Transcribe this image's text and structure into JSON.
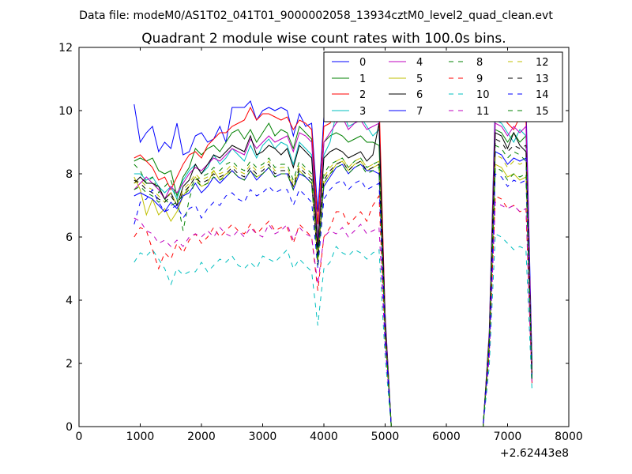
{
  "header": {
    "data_file": "Data file: modeM0/AS1T02_041T01_9000002058_13934cztM0_level2_quad_clean.evt"
  },
  "chart_data": {
    "type": "line",
    "title": "Quadrant 2 module wise count rates with 100.0s bins.",
    "xlabel": "",
    "ylabel": "",
    "xlim": [
      0,
      8000
    ],
    "ylim": [
      0,
      12
    ],
    "x_ticks": [
      0,
      1000,
      2000,
      3000,
      4000,
      5000,
      6000,
      7000,
      8000
    ],
    "x_tick_labels": [
      "0",
      "1000",
      "2000",
      "3000",
      "4000",
      "5000",
      "6000",
      "7000",
      "8000"
    ],
    "y_ticks": [
      0,
      2,
      4,
      6,
      8,
      10,
      12
    ],
    "y_tick_labels": [
      "0",
      "2",
      "4",
      "6",
      "8",
      "10",
      "12"
    ],
    "x_offset_label": "+2.62443e8",
    "legend_position": "top-right",
    "grid": false,
    "x": [
      900,
      1000,
      1100,
      1200,
      1300,
      1400,
      1500,
      1600,
      1700,
      1800,
      1900,
      2000,
      2100,
      2200,
      2300,
      2400,
      2500,
      2600,
      2700,
      2800,
      2900,
      3000,
      3100,
      3200,
      3300,
      3400,
      3500,
      3600,
      3700,
      3800,
      3900,
      4000,
      4100,
      4200,
      4300,
      4400,
      4500,
      4600,
      4700,
      4800,
      4900,
      5000,
      5100,
      6600,
      6700,
      6800,
      6900,
      7000,
      7100,
      7200,
      7300,
      7400
    ],
    "series": [
      {
        "name": "0",
        "color": "#0000ff",
        "dash": "solid",
        "values": [
          10.2,
          9.0,
          9.3,
          9.5,
          8.7,
          9.0,
          8.8,
          9.6,
          8.6,
          8.7,
          9.2,
          9.3,
          9.0,
          9.1,
          9.5,
          9.0,
          10.1,
          10.1,
          10.1,
          10.3,
          9.7,
          10.0,
          10.1,
          10.0,
          10.1,
          10.0,
          9.2,
          9.9,
          9.5,
          9.6,
          6.8,
          9.8,
          9.8,
          10.0,
          10.3,
          9.7,
          10.0,
          10.1,
          9.8,
          9.9,
          9.7,
          3.6,
          0.0,
          0.0,
          3.0,
          10.4,
          10.3,
          10.2,
          9.8,
          10.5,
          10.3,
          2.0
        ]
      },
      {
        "name": "1",
        "color": "#008000",
        "dash": "solid",
        "values": [
          8.4,
          8.5,
          8.4,
          8.5,
          8.1,
          8.0,
          8.1,
          7.3,
          7.9,
          8.2,
          8.8,
          8.6,
          8.8,
          8.9,
          8.7,
          9.0,
          9.3,
          9.4,
          9.1,
          9.4,
          9.0,
          9.3,
          9.6,
          9.2,
          9.4,
          9.3,
          8.8,
          9.5,
          9.3,
          9.1,
          6.0,
          9.0,
          9.2,
          9.3,
          9.2,
          9.0,
          9.1,
          9.2,
          9.0,
          9.0,
          8.9,
          3.4,
          0.0,
          0.0,
          2.8,
          9.4,
          9.3,
          9.0,
          9.3,
          9.0,
          9.2,
          1.8
        ]
      },
      {
        "name": "2",
        "color": "#ff0000",
        "dash": "solid",
        "values": [
          8.5,
          8.6,
          8.4,
          8.2,
          7.8,
          7.9,
          7.5,
          7.9,
          8.3,
          8.6,
          8.7,
          8.5,
          8.9,
          9.1,
          9.3,
          9.3,
          9.5,
          9.6,
          9.7,
          10.1,
          9.7,
          9.9,
          9.9,
          9.8,
          9.7,
          9.8,
          9.4,
          9.7,
          9.6,
          9.4,
          6.4,
          9.5,
          9.6,
          10.0,
          10.2,
          9.8,
          10.0,
          10.3,
          9.7,
          10.1,
          10.4,
          3.5,
          0.0,
          0.0,
          2.9,
          10.0,
          9.9,
          9.6,
          9.4,
          9.8,
          9.7,
          1.7
        ]
      },
      {
        "name": "3",
        "color": "#00bfbf",
        "dash": "solid",
        "values": [
          8.0,
          8.0,
          7.8,
          7.9,
          7.6,
          7.4,
          7.6,
          7.2,
          7.8,
          8.1,
          8.3,
          8.0,
          8.2,
          8.6,
          8.3,
          8.5,
          8.8,
          8.6,
          8.4,
          8.9,
          8.5,
          8.9,
          9.1,
          8.8,
          9.0,
          8.9,
          8.3,
          9.0,
          8.8,
          8.6,
          5.9,
          8.6,
          9.0,
          9.9,
          10.0,
          9.5,
          9.6,
          9.8,
          9.5,
          9.2,
          9.4,
          3.3,
          0.0,
          0.0,
          2.7,
          9.7,
          9.6,
          9.3,
          9.0,
          9.4,
          9.2,
          1.6
        ]
      },
      {
        "name": "4",
        "color": "#bf00bf",
        "dash": "solid",
        "values": [
          7.5,
          7.7,
          7.9,
          7.7,
          7.5,
          7.2,
          7.6,
          7.4,
          7.7,
          8.0,
          8.2,
          8.1,
          8.3,
          8.5,
          8.4,
          8.6,
          8.8,
          8.7,
          8.6,
          9.1,
          8.8,
          9.0,
          9.2,
          9.0,
          9.1,
          9.2,
          8.7,
          9.3,
          9.2,
          9.0,
          5.8,
          9.0,
          9.3,
          9.6,
          9.8,
          9.4,
          9.6,
          9.7,
          9.4,
          9.5,
          9.6,
          3.4,
          0.0,
          0.0,
          2.8,
          9.6,
          9.5,
          9.2,
          9.5,
          9.3,
          9.5,
          1.7
        ]
      },
      {
        "name": "5",
        "color": "#bfbf00",
        "dash": "solid",
        "values": [
          7.9,
          7.5,
          6.7,
          7.2,
          6.7,
          6.9,
          6.5,
          6.8,
          7.3,
          7.6,
          7.9,
          7.6,
          7.7,
          8.1,
          7.8,
          8.0,
          8.1,
          7.9,
          7.8,
          8.1,
          7.9,
          8.0,
          8.2,
          7.9,
          8.0,
          8.0,
          7.6,
          8.1,
          7.9,
          7.7,
          5.2,
          7.7,
          8.0,
          8.3,
          8.4,
          8.1,
          8.3,
          8.4,
          8.1,
          8.2,
          8.3,
          3.0,
          0.0,
          0.0,
          2.5,
          8.3,
          8.2,
          7.9,
          8.0,
          7.8,
          7.9,
          1.5
        ]
      },
      {
        "name": "6",
        "color": "#000000",
        "dash": "solid",
        "values": [
          7.7,
          7.9,
          7.7,
          7.7,
          7.6,
          7.2,
          7.4,
          7.0,
          7.6,
          7.8,
          8.3,
          8.0,
          8.3,
          8.6,
          8.5,
          8.7,
          8.9,
          8.8,
          8.7,
          9.2,
          8.6,
          8.7,
          8.9,
          8.8,
          8.6,
          8.8,
          8.2,
          8.9,
          8.7,
          8.5,
          5.6,
          8.5,
          8.7,
          8.8,
          8.7,
          8.5,
          8.6,
          8.7,
          8.4,
          8.6,
          9.6,
          3.3,
          0.0,
          0.0,
          2.8,
          9.3,
          9.2,
          8.8,
          9.3,
          8.9,
          8.7,
          1.6
        ]
      },
      {
        "name": "7",
        "color": "#0000ff",
        "dash": "solid",
        "values": [
          7.3,
          7.4,
          7.3,
          7.2,
          7.0,
          6.8,
          7.1,
          6.9,
          7.3,
          7.4,
          7.7,
          7.4,
          7.6,
          7.9,
          7.7,
          7.9,
          8.1,
          7.9,
          7.8,
          8.1,
          7.8,
          8.0,
          8.2,
          7.9,
          8.0,
          8.0,
          7.5,
          8.0,
          7.9,
          7.7,
          5.4,
          7.6,
          7.9,
          8.2,
          8.3,
          8.0,
          8.2,
          8.3,
          8.1,
          8.1,
          8.0,
          3.1,
          0.0,
          0.0,
          2.6,
          8.7,
          8.6,
          8.3,
          8.5,
          8.4,
          8.5,
          1.5
        ]
      },
      {
        "name": "8",
        "color": "#008000",
        "dash": "dashed",
        "values": [
          8.3,
          8.1,
          7.7,
          7.9,
          7.4,
          7.6,
          7.8,
          7.2,
          6.2,
          7.2,
          7.8,
          7.9,
          8.0,
          8.2,
          8.1,
          8.3,
          8.4,
          8.2,
          8.1,
          8.4,
          8.2,
          8.3,
          8.5,
          8.2,
          8.3,
          8.3,
          7.8,
          8.4,
          8.2,
          8.0,
          5.3,
          8.0,
          8.3,
          8.4,
          8.5,
          8.2,
          8.4,
          8.5,
          8.2,
          8.3,
          8.4,
          3.1,
          0.0,
          0.0,
          2.7,
          8.9,
          8.8,
          8.5,
          8.7,
          8.6,
          8.4,
          1.5
        ]
      },
      {
        "name": "9",
        "color": "#ff0000",
        "dash": "dashed",
        "values": [
          6.0,
          6.3,
          6.2,
          5.6,
          5.0,
          5.5,
          5.3,
          5.8,
          5.5,
          5.9,
          6.1,
          5.8,
          6.0,
          6.3,
          6.0,
          6.2,
          6.4,
          6.2,
          6.1,
          6.4,
          6.1,
          6.3,
          6.5,
          6.2,
          6.3,
          6.3,
          5.8,
          6.4,
          6.2,
          6.0,
          4.3,
          6.0,
          6.3,
          6.8,
          6.8,
          6.4,
          6.6,
          6.8,
          6.5,
          7.0,
          7.3,
          2.7,
          0.0,
          0.0,
          2.3,
          7.3,
          7.2,
          6.9,
          7.0,
          6.8,
          6.9,
          1.3
        ]
      },
      {
        "name": "10",
        "color": "#00bfbf",
        "dash": "dashed",
        "values": [
          5.2,
          5.5,
          5.4,
          5.6,
          5.3,
          5.0,
          4.5,
          5.0,
          4.8,
          4.9,
          4.9,
          5.2,
          4.9,
          5.1,
          5.3,
          5.2,
          5.4,
          5.1,
          5.0,
          5.2,
          5.0,
          5.4,
          5.3,
          5.2,
          5.4,
          5.6,
          5.0,
          5.3,
          5.1,
          4.9,
          3.2,
          5.0,
          5.2,
          5.7,
          5.5,
          5.4,
          5.6,
          5.5,
          5.3,
          5.5,
          5.6,
          2.2,
          0.0,
          0.0,
          1.9,
          6.1,
          6.0,
          5.8,
          5.6,
          5.7,
          5.6,
          1.1
        ]
      },
      {
        "name": "11",
        "color": "#bf00bf",
        "dash": "dashed",
        "values": [
          6.6,
          6.5,
          6.2,
          6.1,
          5.8,
          5.9,
          5.7,
          5.9,
          5.7,
          6.0,
          6.1,
          6.0,
          6.2,
          6.0,
          6.3,
          6.1,
          6.0,
          6.2,
          6.0,
          6.3,
          6.1,
          6.0,
          6.4,
          6.1,
          6.2,
          6.4,
          5.9,
          6.3,
          6.1,
          6.0,
          4.5,
          6.0,
          6.2,
          6.1,
          6.3,
          6.0,
          6.2,
          6.4,
          6.1,
          6.2,
          6.3,
          2.6,
          0.0,
          0.0,
          2.2,
          7.1,
          7.0,
          6.9,
          7.0,
          6.8,
          6.9,
          1.3
        ]
      },
      {
        "name": "12",
        "color": "#bfbf00",
        "dash": "dashed",
        "values": [
          7.7,
          7.8,
          7.6,
          7.5,
          7.3,
          7.1,
          7.4,
          7.0,
          7.5,
          7.7,
          8.0,
          7.8,
          7.9,
          8.1,
          8.0,
          8.1,
          8.3,
          8.1,
          8.0,
          8.3,
          8.1,
          8.2,
          8.4,
          8.1,
          8.2,
          8.2,
          7.7,
          8.3,
          8.1,
          7.9,
          5.3,
          7.9,
          8.2,
          8.4,
          8.5,
          8.2,
          8.4,
          8.5,
          8.2,
          8.3,
          8.4,
          3.1,
          0.0,
          0.0,
          2.7,
          8.6,
          8.5,
          8.2,
          8.4,
          8.3,
          8.4,
          1.5
        ]
      },
      {
        "name": "13",
        "color": "#000000",
        "dash": "dashed",
        "values": [
          7.8,
          7.7,
          7.5,
          7.4,
          7.2,
          7.1,
          7.3,
          7.0,
          7.4,
          7.6,
          7.9,
          7.7,
          7.8,
          8.0,
          7.9,
          8.0,
          8.2,
          8.0,
          7.9,
          8.2,
          8.0,
          8.1,
          8.3,
          8.0,
          8.1,
          8.1,
          7.6,
          8.2,
          8.0,
          7.8,
          5.2,
          7.8,
          8.1,
          8.3,
          8.4,
          8.1,
          8.3,
          8.4,
          8.1,
          8.2,
          8.3,
          3.0,
          0.0,
          0.0,
          2.6,
          9.1,
          9.0,
          8.7,
          8.9,
          8.8,
          8.9,
          1.5
        ]
      },
      {
        "name": "14",
        "color": "#0000ff",
        "dash": "dashed",
        "values": [
          6.4,
          7.1,
          7.2,
          7.5,
          7.1,
          6.8,
          6.9,
          7.0,
          6.6,
          6.9,
          7.0,
          6.6,
          6.9,
          7.1,
          7.0,
          7.3,
          7.4,
          7.2,
          7.1,
          7.5,
          7.3,
          7.4,
          7.6,
          7.4,
          7.5,
          7.5,
          7.0,
          7.5,
          7.3,
          7.1,
          5.0,
          7.2,
          7.5,
          7.7,
          7.8,
          7.5,
          7.7,
          7.8,
          7.5,
          7.6,
          7.7,
          2.9,
          0.0,
          0.0,
          2.5,
          8.0,
          7.9,
          7.6,
          7.8,
          7.7,
          7.8,
          1.4
        ]
      },
      {
        "name": "15",
        "color": "#008000",
        "dash": "dashed",
        "values": [
          7.5,
          7.6,
          7.4,
          7.3,
          7.1,
          7.2,
          7.0,
          7.1,
          7.3,
          7.5,
          7.8,
          7.6,
          7.7,
          7.9,
          7.8,
          7.9,
          8.1,
          7.9,
          7.8,
          8.1,
          7.9,
          8.0,
          8.2,
          7.9,
          8.0,
          8.0,
          7.5,
          8.1,
          7.9,
          7.7,
          5.1,
          7.7,
          8.0,
          8.2,
          8.3,
          8.0,
          8.2,
          8.3,
          8.0,
          8.1,
          8.2,
          3.0,
          0.0,
          0.0,
          2.6,
          8.2,
          8.1,
          7.8,
          8.0,
          7.9,
          8.0,
          1.4
        ]
      }
    ]
  }
}
